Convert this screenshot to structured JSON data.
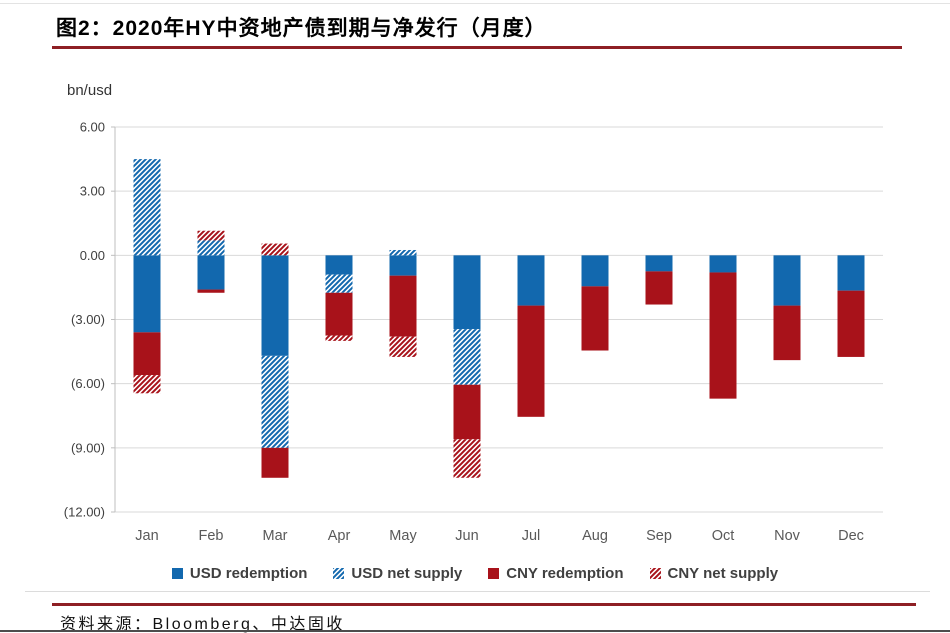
{
  "header": {
    "title": "图2：2020年HY中资地产债到期与净发行（月度）"
  },
  "footer": {
    "source": "资料来源：Bloomberg、中达固收"
  },
  "colors": {
    "usd": "#1268ae",
    "cny": "#a8121a",
    "rule": "#8e1f24",
    "grid": "#d9d9d9",
    "axis_line": "#bfbfbf",
    "axis_text": "#404040",
    "month_text": "#595959",
    "legend_text": "#404040"
  },
  "chart_data": {
    "type": "bar",
    "stacked": true,
    "unit_label": "bn/usd",
    "title": "2020年HY中资地产债到期与净发行（月度）",
    "xlabel": "",
    "ylabel": "bn/usd",
    "ylim": [
      -12,
      6
    ],
    "grid": "horizontal",
    "legend_position": "bottom",
    "categories": [
      "Jan",
      "Feb",
      "Mar",
      "Apr",
      "May",
      "Jun",
      "Jul",
      "Aug",
      "Sep",
      "Oct",
      "Nov",
      "Dec"
    ],
    "y_ticks": [
      6,
      3,
      0,
      -3,
      -6,
      -9,
      -12
    ],
    "y_tick_labels": [
      "6.00",
      "3.00",
      "0.00",
      "(3.00)",
      "(6.00)",
      "(9.00)",
      "(12.00)"
    ],
    "series": [
      {
        "name": "USD redemption",
        "style": "solid",
        "color_key": "usd",
        "values": [
          -3.6,
          -1.6,
          -4.7,
          -0.9,
          -0.95,
          -3.45,
          -2.35,
          -1.45,
          -0.75,
          -0.8,
          -2.35,
          -1.65
        ]
      },
      {
        "name": "USD net supply",
        "style": "hatch",
        "color_key": "usd",
        "values": [
          4.5,
          0.7,
          -4.3,
          -0.85,
          0.25,
          -2.6,
          0,
          0,
          0,
          0,
          0,
          0
        ]
      },
      {
        "name": "CNY redemption",
        "style": "solid",
        "color_key": "cny",
        "values": [
          -2.0,
          -0.15,
          -1.4,
          -2.0,
          -2.85,
          -2.55,
          -5.2,
          -3.0,
          -1.55,
          -5.9,
          -2.55,
          -3.1
        ]
      },
      {
        "name": "CNY net supply",
        "style": "hatch",
        "color_key": "cny",
        "values": [
          -0.85,
          0.45,
          0.55,
          -0.25,
          -0.95,
          -1.8,
          0,
          0,
          0,
          0,
          0,
          0
        ]
      }
    ]
  }
}
